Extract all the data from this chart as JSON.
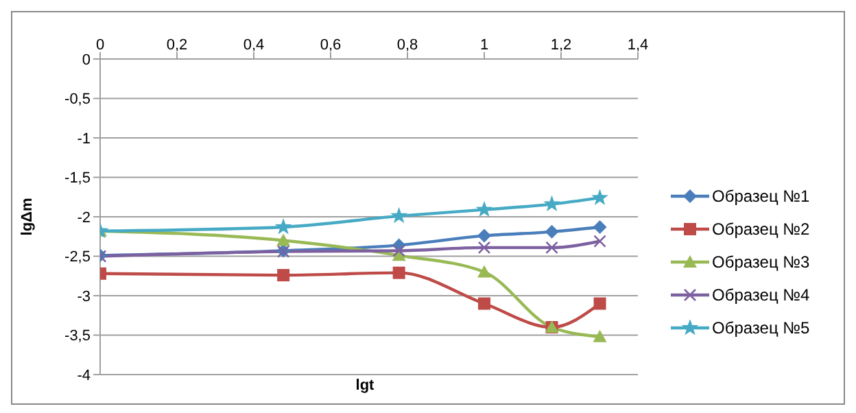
{
  "chart_data": {
    "type": "line",
    "xlabel": "lgt",
    "ylabel": "lgΔm",
    "x": [
      0,
      0.477,
      0.778,
      1,
      1.176,
      1.301
    ],
    "xlim": [
      0,
      1.4
    ],
    "xticks": [
      {
        "value": 0,
        "label": "0"
      },
      {
        "value": 0.2,
        "label": "0,2"
      },
      {
        "value": 0.4,
        "label": "0,4"
      },
      {
        "value": 0.6,
        "label": "0,6"
      },
      {
        "value": 0.8,
        "label": "0,8"
      },
      {
        "value": 1,
        "label": "1"
      },
      {
        "value": 1.2,
        "label": "1,2"
      },
      {
        "value": 1.4,
        "label": "1,4"
      }
    ],
    "ylim": [
      -4,
      0
    ],
    "yticks": [
      {
        "value": -4,
        "label": "-4"
      },
      {
        "value": -3.5,
        "label": "-3,5"
      },
      {
        "value": -3,
        "label": "-3"
      },
      {
        "value": -2.5,
        "label": "-2,5"
      },
      {
        "value": -2,
        "label": "-2"
      },
      {
        "value": -1.5,
        "label": "-1,5"
      },
      {
        "value": -1,
        "label": "-1"
      },
      {
        "value": -0.5,
        "label": "-0,5"
      },
      {
        "value": 0,
        "label": "0"
      }
    ],
    "grid": "y",
    "legend": "right",
    "series": [
      {
        "name": "Образец №1",
        "color": "#4a7ebb",
        "marker": "diamond",
        "values": [
          -2.49,
          -2.43,
          -2.36,
          -2.24,
          -2.19,
          -2.13
        ]
      },
      {
        "name": "Образец №2",
        "color": "#be4b48",
        "marker": "square",
        "values": [
          -2.72,
          -2.74,
          -2.71,
          -3.1,
          -3.4,
          -3.1
        ]
      },
      {
        "name": "Образец №3",
        "color": "#98b954",
        "marker": "triangle",
        "values": [
          -2.18,
          -2.3,
          -2.49,
          -2.7,
          -3.4,
          -3.52
        ]
      },
      {
        "name": "Образец №4",
        "color": "#7d60a0",
        "marker": "cross",
        "values": [
          -2.5,
          -2.44,
          -2.43,
          -2.39,
          -2.39,
          -2.31
        ]
      },
      {
        "name": "Образец №5",
        "color": "#46aac5",
        "marker": "star",
        "values": [
          -2.18,
          -2.13,
          -1.99,
          -1.91,
          -1.84,
          -1.76
        ]
      }
    ]
  }
}
